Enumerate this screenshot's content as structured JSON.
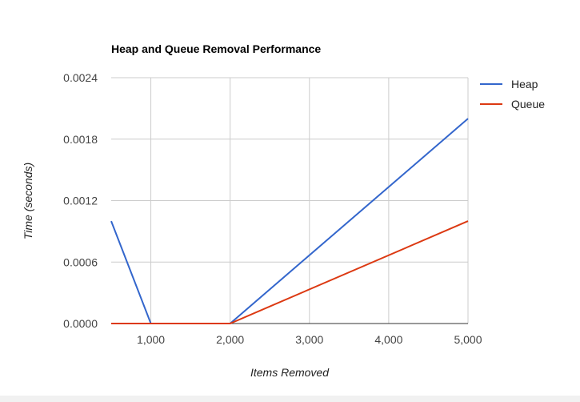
{
  "chart_data": {
    "type": "line",
    "title": "Heap and Queue Removal Performance",
    "xlabel": "Items Removed",
    "ylabel": "Time (seconds)",
    "xlim": [
      500,
      5000
    ],
    "ylim": [
      0,
      0.0024
    ],
    "x_ticks": [
      1000,
      2000,
      3000,
      4000,
      5000
    ],
    "x_tick_labels": [
      "1,000",
      "2,000",
      "3,000",
      "4,000",
      "5,000"
    ],
    "y_ticks": [
      0,
      0.0006,
      0.0012,
      0.0018,
      0.0024
    ],
    "y_tick_labels": [
      "0.0000",
      "0.0006",
      "0.0012",
      "0.0018",
      "0.0024"
    ],
    "grid": true,
    "legend_position": "right",
    "series": [
      {
        "name": "Heap",
        "color": "#3366cc",
        "points": [
          [
            500,
            0.001
          ],
          [
            1000,
            0
          ],
          [
            2000,
            0
          ],
          [
            5000,
            0.002
          ]
        ]
      },
      {
        "name": "Queue",
        "color": "#dc3912",
        "points": [
          [
            500,
            0
          ],
          [
            1000,
            0
          ],
          [
            2000,
            0
          ],
          [
            5000,
            0.001
          ]
        ]
      }
    ]
  }
}
